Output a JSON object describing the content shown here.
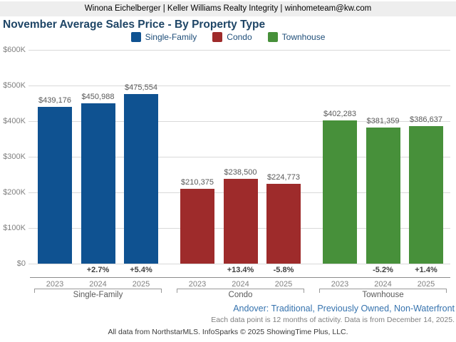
{
  "header": {
    "contact_line": "Winona Eichelberger | Keller Williams Realty Integrity | winhometeam@kw.com"
  },
  "title": "November Average Sales Price - By Property Type",
  "chart_data": {
    "type": "bar",
    "title": "November Average Sales Price - By Property Type",
    "categories": [
      "2023",
      "2024",
      "2025"
    ],
    "groups": [
      {
        "name": "Single-Family",
        "color": "#0f5291",
        "values": [
          439176,
          450988,
          475554
        ],
        "value_labels": [
          "$439,176",
          "$450,988",
          "$475,554"
        ],
        "pct_change": [
          "",
          "+2.7%",
          "+5.4%"
        ]
      },
      {
        "name": "Condo",
        "color": "#9e2b2b",
        "values": [
          210375,
          238500,
          224773
        ],
        "value_labels": [
          "$210,375",
          "$238,500",
          "$224,773"
        ],
        "pct_change": [
          "",
          "+13.4%",
          "-5.8%"
        ]
      },
      {
        "name": "Townhouse",
        "color": "#47903a",
        "values": [
          402283,
          381359,
          386637
        ],
        "value_labels": [
          "$402,283",
          "$381,359",
          "$386,637"
        ],
        "pct_change": [
          "",
          "-5.2%",
          "+1.4%"
        ]
      }
    ],
    "xlabel": "",
    "ylabel": "",
    "ylim": [
      0,
      600000
    ],
    "y_tick_labels": [
      "$0",
      "$100K",
      "$200K",
      "$300K",
      "$400K",
      "$500K",
      "$600K"
    ],
    "grid": true,
    "legend_position": "top"
  },
  "footer": {
    "filter_line": "Andover: Traditional, Previously Owned, Non-Waterfront",
    "data_note": "Each data point is 12 months of activity. Data is from December 14, 2025.",
    "attribution": "All data from NorthstarMLS. InfoSparks © 2025 ShowingTime Plus, LLC."
  }
}
